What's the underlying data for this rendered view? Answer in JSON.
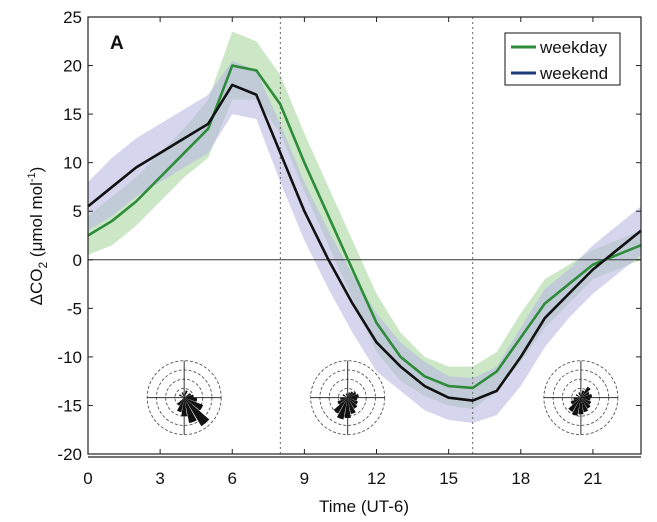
{
  "chart_data": {
    "type": "line",
    "panel_label": "A",
    "xlabel": "Time (UT-6)",
    "ylabel": "ΔCO",
    "ylabel_sub": "2",
    "ylabel_units_pre": " (μmol mol",
    "ylabel_units_sup": "-1",
    "ylabel_units_post": ")",
    "xlim": [
      0,
      23
    ],
    "ylim": [
      -20,
      25
    ],
    "xticks": [
      0,
      3,
      6,
      9,
      12,
      15,
      18,
      21
    ],
    "yticks": [
      -20,
      -15,
      -10,
      -5,
      0,
      5,
      10,
      15,
      20,
      25
    ],
    "grid": false,
    "legend_position": "top-right",
    "reference_lines": {
      "horizontal_y": 0,
      "vertical_x": [
        8,
        16
      ]
    },
    "series": [
      {
        "name": "weekday",
        "color": "#2e8b3a",
        "band_color": "#a9d7a0",
        "x": [
          0,
          1,
          2,
          3,
          4,
          5,
          6,
          7,
          8,
          9,
          10,
          11,
          12,
          13,
          14,
          15,
          16,
          17,
          18,
          19,
          20,
          21,
          22,
          23
        ],
        "y": [
          2.5,
          4,
          6,
          8.5,
          11,
          13.5,
          20,
          19.5,
          16,
          10,
          4.5,
          -1,
          -6.5,
          -10,
          -12,
          -13,
          -13.2,
          -11.5,
          -8,
          -4.5,
          -2.5,
          -0.5,
          0.5,
          1.5
        ],
        "upper": [
          4.5,
          6.5,
          8.5,
          11,
          13.5,
          16.5,
          23.5,
          22.5,
          19,
          13,
          7.5,
          2,
          -3.5,
          -7.5,
          -10,
          -11,
          -11,
          -9.5,
          -5.5,
          -2,
          -0.5,
          1,
          2,
          3
        ],
        "lower": [
          0.5,
          1.5,
          3.5,
          6,
          8.5,
          10.5,
          16.5,
          16.5,
          13,
          7,
          1.5,
          -4,
          -9.5,
          -12.5,
          -14,
          -15,
          -15.4,
          -13.5,
          -10.5,
          -7,
          -4.5,
          -2,
          -1,
          0
        ]
      },
      {
        "name": "weekend",
        "color": "#111111",
        "legend_color": "#1f3a7a",
        "band_color": "#b9b9e2",
        "x": [
          0,
          1,
          2,
          3,
          4,
          5,
          6,
          7,
          8,
          9,
          10,
          11,
          12,
          13,
          14,
          15,
          16,
          17,
          18,
          19,
          20,
          21,
          22,
          23
        ],
        "y": [
          5.5,
          7.5,
          9.5,
          11,
          12.5,
          14,
          18,
          17,
          11,
          5,
          0,
          -4.5,
          -8.5,
          -11,
          -13,
          -14.2,
          -14.5,
          -13.5,
          -10,
          -6,
          -3.5,
          -1,
          1,
          3
        ],
        "upper": [
          8,
          10.5,
          12.5,
          14,
          15.5,
          17,
          20.5,
          19.5,
          14,
          8,
          3,
          -1.5,
          -5.5,
          -8.5,
          -10.5,
          -12,
          -12.2,
          -11,
          -7,
          -3,
          -1,
          1.5,
          3.5,
          5.5
        ],
        "lower": [
          3,
          4.5,
          6.5,
          8,
          9.5,
          11,
          15,
          14.5,
          8,
          2,
          -3,
          -7.5,
          -11.5,
          -13.5,
          -15.5,
          -16.5,
          -16.8,
          -16,
          -13,
          -9,
          -6,
          -3.5,
          -1.5,
          0.5
        ]
      }
    ],
    "inset_wind_roses": [
      {
        "center_x": 4,
        "center_y": -14.2,
        "petals": [
          [
            140,
            0.9
          ],
          [
            160,
            0.7
          ],
          [
            120,
            0.55
          ],
          [
            180,
            0.5
          ],
          [
            100,
            0.35
          ],
          [
            200,
            0.4
          ],
          [
            80,
            0.25
          ],
          [
            60,
            0.2
          ],
          [
            220,
            0.25
          ],
          [
            300,
            0.15
          ],
          [
            20,
            0.2
          ],
          [
            340,
            0.15
          ]
        ]
      },
      {
        "center_x": 10.8,
        "center_y": -14.2,
        "petals": [
          [
            200,
            0.6
          ],
          [
            180,
            0.55
          ],
          [
            160,
            0.45
          ],
          [
            220,
            0.5
          ],
          [
            140,
            0.35
          ],
          [
            240,
            0.3
          ],
          [
            120,
            0.3
          ],
          [
            100,
            0.25
          ],
          [
            80,
            0.3
          ],
          [
            60,
            0.25
          ],
          [
            40,
            0.2
          ],
          [
            20,
            0.15
          ],
          [
            260,
            0.2
          ],
          [
            300,
            0.15
          ],
          [
            340,
            0.12
          ]
        ]
      },
      {
        "center_x": 20.5,
        "center_y": -14.2,
        "petals": [
          [
            200,
            0.5
          ],
          [
            180,
            0.45
          ],
          [
            160,
            0.4
          ],
          [
            220,
            0.45
          ],
          [
            140,
            0.35
          ],
          [
            240,
            0.3
          ],
          [
            120,
            0.3
          ],
          [
            100,
            0.25
          ],
          [
            80,
            0.3
          ],
          [
            60,
            0.25
          ],
          [
            40,
            0.35
          ],
          [
            20,
            0.2
          ],
          [
            260,
            0.2
          ],
          [
            300,
            0.15
          ],
          [
            340,
            0.15
          ]
        ]
      }
    ]
  }
}
